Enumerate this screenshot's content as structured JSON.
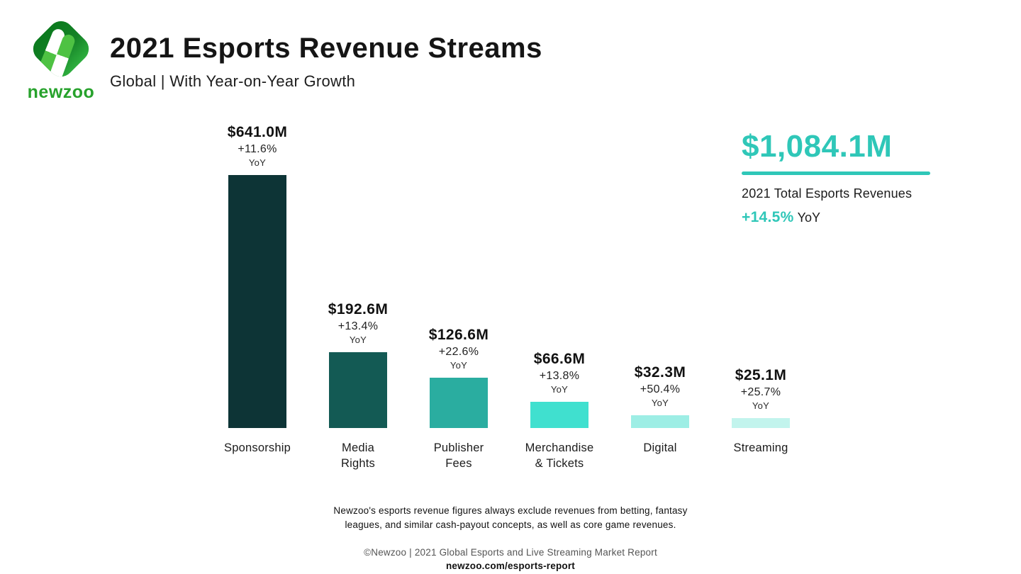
{
  "brand": {
    "wordmark": "newzoo"
  },
  "header": {
    "title": "2021 Esports Revenue Streams",
    "subtitle": "Global | With Year-on-Year Growth"
  },
  "total": {
    "amount": "$1,084.1M",
    "caption": "2021 Total Esports Revenues",
    "growth": "+14.5%",
    "growth_suffix": "YoY"
  },
  "chart_data": {
    "type": "bar",
    "title": "2021 Esports Revenue Streams",
    "subtitle": "Global | With Year-on-Year Growth",
    "unit": "USD millions",
    "categories": [
      "Sponsorship",
      "Media Rights",
      "Publisher Fees",
      "Merchandise & Tickets",
      "Digital",
      "Streaming"
    ],
    "values": [
      641.0,
      192.6,
      126.6,
      66.6,
      32.3,
      25.1
    ],
    "yoy_growth_percent": [
      11.6,
      13.4,
      22.6,
      13.8,
      50.4,
      25.7
    ],
    "total": {
      "value": 1084.1,
      "yoy_growth_percent": 14.5
    },
    "bar_colors": [
      "#0d3436",
      "#135a54",
      "#2aada0",
      "#40e0cf",
      "#9deee5",
      "#c2f4ed"
    ],
    "grid": false,
    "legend": false,
    "bars": [
      {
        "label_line1": "Sponsorship",
        "label_line2": "",
        "value_label": "$641.0M",
        "growth_label": "+11.6%",
        "yoy": "YoY"
      },
      {
        "label_line1": "Media",
        "label_line2": "Rights",
        "value_label": "$192.6M",
        "growth_label": "+13.4%",
        "yoy": "YoY"
      },
      {
        "label_line1": "Publisher",
        "label_line2": "Fees",
        "value_label": "$126.6M",
        "growth_label": "+22.6%",
        "yoy": "YoY"
      },
      {
        "label_line1": "Merchandise",
        "label_line2": "& Tickets",
        "value_label": "$66.6M",
        "growth_label": "+13.8%",
        "yoy": "YoY"
      },
      {
        "label_line1": "Digital",
        "label_line2": "",
        "value_label": "$32.3M",
        "growth_label": "+50.4%",
        "yoy": "YoY"
      },
      {
        "label_line1": "Streaming",
        "label_line2": "",
        "value_label": "$25.1M",
        "growth_label": "+25.7%",
        "yoy": "YoY"
      }
    ]
  },
  "footer": {
    "note_line1": "Newzoo's esports revenue figures always exclude revenues from betting, fantasy",
    "note_line2": "leagues, and similar cash-payout concepts, as well as core game revenues.",
    "copyright": "©Newzoo | 2021 Global Esports and Live Streaming Market Report",
    "url": "newzoo.com/esports-report"
  },
  "colors": {
    "accent_teal": "#2fc7b8",
    "logo_green_dark": "#0d7d20",
    "logo_green_bright": "#2eae3e",
    "wordmark_green": "#27a22c",
    "title_text": "#151515"
  }
}
